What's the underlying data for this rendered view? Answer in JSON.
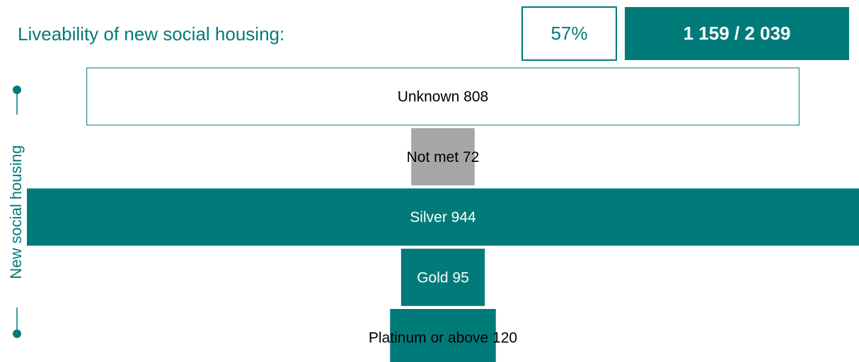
{
  "chart_data": {
    "type": "funnel",
    "title": "Liveability of new social housing:",
    "summary_percent": "57%",
    "summary_count": "1 159 / 2 039",
    "y_label": "New social housing",
    "categories": [
      "Unknown",
      "Not met",
      "Silver",
      "Gold",
      "Platinum or above"
    ],
    "values": [
      808,
      72,
      944,
      95,
      120
    ],
    "colors": [
      "#ffffff",
      "#a6a6a6",
      "#007b7a",
      "#007b7a",
      "#007b7a"
    ],
    "outline_color": "#007b7a"
  }
}
